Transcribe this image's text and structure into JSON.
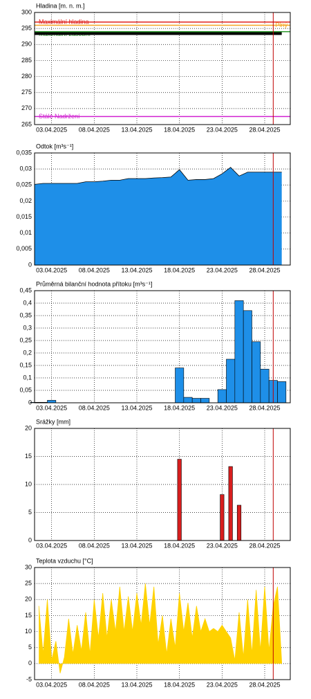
{
  "chart_data": [
    {
      "type": "line",
      "title": "Hladina [m. n. m.]",
      "x": [
        1,
        30
      ],
      "series": [
        {
          "color": "#000000",
          "values": [
            293.4,
            293.4
          ]
        }
      ],
      "reference_lines": [
        {
          "name": "Maximální hladina",
          "value": 297,
          "color": "#e0201c"
        },
        {
          "name": "Plný",
          "value": 296,
          "color": "#f5a623"
        },
        {
          "name": "Maximální zásobní",
          "value": 294,
          "color": "#2e9a2e"
        },
        {
          "name": "Stálé Nadržení",
          "value": 267.5,
          "color": "#d020d0"
        }
      ],
      "xlim": [
        1,
        31
      ],
      "xticks": [
        {
          "value": 3,
          "label": "03.04.2025"
        },
        {
          "value": 8,
          "label": "08.04.2025"
        },
        {
          "value": 13,
          "label": "13.04.2025"
        },
        {
          "value": 18,
          "label": "18.04.2025"
        },
        {
          "value": 23,
          "label": "23.04.2025"
        },
        {
          "value": 28,
          "label": "28.04.2025"
        }
      ],
      "ylim": [
        265,
        300
      ],
      "yticks": [
        265,
        270,
        275,
        280,
        285,
        290,
        295,
        300
      ],
      "marker_line": {
        "x": 29,
        "color": "#c00000"
      },
      "grid": true
    },
    {
      "type": "area",
      "title": "Odtok [m³s⁻¹]",
      "color": "#1e8fe8",
      "x": [
        1,
        2,
        3,
        4,
        5,
        6,
        7,
        8,
        9,
        10,
        11,
        12,
        13,
        14,
        15,
        16,
        17,
        18,
        19,
        20,
        21,
        22,
        23,
        24,
        25,
        26,
        27,
        28,
        29,
        30
      ],
      "values": [
        0.0252,
        0.0255,
        0.0255,
        0.0255,
        0.0255,
        0.0255,
        0.026,
        0.026,
        0.0262,
        0.0265,
        0.0265,
        0.027,
        0.027,
        0.027,
        0.0272,
        0.0273,
        0.0275,
        0.0298,
        0.0265,
        0.0267,
        0.0267,
        0.027,
        0.0285,
        0.0305,
        0.0278,
        0.029,
        0.029,
        0.029,
        0.029,
        0.029
      ],
      "xlim": [
        1,
        31
      ],
      "xticks": [
        {
          "value": 3,
          "label": "03.04.2025"
        },
        {
          "value": 8,
          "label": "08.04.2025"
        },
        {
          "value": 13,
          "label": "13.04.2025"
        },
        {
          "value": 18,
          "label": "18.04.2025"
        },
        {
          "value": 23,
          "label": "23.04.2025"
        },
        {
          "value": 28,
          "label": "28.04.2025"
        }
      ],
      "ylim": [
        0,
        0.035
      ],
      "yticks": [
        0,
        {
          "value": 0.005,
          "label": "0,005"
        },
        {
          "value": 0.01,
          "label": "0,01"
        },
        {
          "value": 0.015,
          "label": "0,015"
        },
        {
          "value": 0.02,
          "label": "0,02"
        },
        {
          "value": 0.025,
          "label": "0,025"
        },
        {
          "value": 0.03,
          "label": "0,03"
        },
        {
          "value": 0.035,
          "label": "0,035"
        }
      ],
      "marker_line": {
        "x": 29,
        "color": "#c00000"
      },
      "grid": true
    },
    {
      "type": "bar",
      "title": "Průměrná bilanční hodnota přítoku   [m³s⁻¹]",
      "color": "#1e8fe8",
      "x": [
        1,
        2,
        3,
        4,
        5,
        6,
        7,
        8,
        9,
        10,
        11,
        12,
        13,
        14,
        15,
        16,
        17,
        18,
        19,
        20,
        21,
        22,
        23,
        24,
        25,
        26,
        27,
        28,
        29,
        30
      ],
      "values": [
        0.002,
        0.002,
        0.01,
        0,
        0,
        0,
        0,
        0,
        0,
        0,
        0,
        0,
        0,
        0,
        0,
        0,
        0,
        0.14,
        0.022,
        0.018,
        0.018,
        0,
        0.053,
        0.175,
        0.41,
        0.37,
        0.245,
        0.135,
        0.09,
        0.085
      ],
      "xlim": [
        1,
        31
      ],
      "xticks": [
        {
          "value": 3,
          "label": "03.04.2025"
        },
        {
          "value": 8,
          "label": "08.04.2025"
        },
        {
          "value": 13,
          "label": "13.04.2025"
        },
        {
          "value": 18,
          "label": "18.04.2025"
        },
        {
          "value": 23,
          "label": "23.04.2025"
        },
        {
          "value": 28,
          "label": "28.04.2025"
        }
      ],
      "ylim": [
        0,
        0.45
      ],
      "yticks": [
        0,
        {
          "value": 0.05,
          "label": "0,05"
        },
        {
          "value": 0.1,
          "label": "0,1"
        },
        {
          "value": 0.15,
          "label": "0,15"
        },
        {
          "value": 0.2,
          "label": "0,2"
        },
        {
          "value": 0.25,
          "label": "0,25"
        },
        {
          "value": 0.3,
          "label": "0,3"
        },
        {
          "value": 0.35,
          "label": "0,35"
        },
        {
          "value": 0.4,
          "label": "0,4"
        },
        {
          "value": 0.45,
          "label": "0,45"
        }
      ],
      "marker_line": {
        "x": 29,
        "color": "#c00000"
      },
      "grid": true
    },
    {
      "type": "bar",
      "title": "Srážky [mm]",
      "color": "#d81e1e",
      "x": [
        18,
        23,
        24,
        25
      ],
      "values": [
        14.5,
        8.2,
        13.2,
        6.3
      ],
      "xlim": [
        1,
        31
      ],
      "xticks": [
        {
          "value": 3,
          "label": "03.04.2025"
        },
        {
          "value": 8,
          "label": "08.04.2025"
        },
        {
          "value": 13,
          "label": "13.04.2025"
        },
        {
          "value": 18,
          "label": "18.04.2025"
        },
        {
          "value": 23,
          "label": "23.04.2025"
        },
        {
          "value": 28,
          "label": "28.04.2025"
        }
      ],
      "ylim": [
        0,
        20
      ],
      "yticks": [
        0,
        5,
        10,
        15,
        20
      ],
      "marker_line": {
        "x": 29,
        "color": "#c00000"
      },
      "grid": true
    },
    {
      "type": "area",
      "title": "Teplota vzduchu [°C]",
      "color": "#ffd200",
      "x": [
        1.5,
        2,
        2.5,
        3,
        3.5,
        4,
        4.5,
        5,
        5.5,
        6,
        6.5,
        7,
        7.5,
        8,
        8.5,
        9,
        9.5,
        10,
        10.5,
        11,
        11.5,
        12,
        12.5,
        13,
        13.5,
        14,
        14.5,
        15,
        15.5,
        16,
        16.5,
        17,
        17.5,
        18,
        18.5,
        19,
        19.5,
        20,
        20.5,
        21,
        21.5,
        22,
        22.5,
        23,
        23.5,
        24,
        24.5,
        25,
        25.5,
        26,
        26.5,
        27,
        27.5,
        28,
        28.5,
        29,
        29.5,
        30
      ],
      "values": [
        18,
        3,
        20,
        1,
        7,
        -3,
        2,
        14,
        3,
        12,
        4,
        16,
        3,
        20,
        8,
        22,
        8,
        20,
        10,
        24,
        10,
        21,
        10,
        22,
        12,
        25,
        12,
        24,
        6,
        15,
        3,
        14,
        5,
        22,
        10,
        19,
        8,
        18,
        10,
        14,
        10,
        11,
        10,
        12,
        10,
        8,
        1,
        16,
        2,
        20,
        3,
        23,
        4,
        24,
        4,
        18,
        24,
        0
      ],
      "xlim": [
        1,
        31
      ],
      "xticks": [
        {
          "value": 3,
          "label": "03.04.2025"
        },
        {
          "value": 8,
          "label": "08.04.2025"
        },
        {
          "value": 13,
          "label": "13.04.2025"
        },
        {
          "value": 18,
          "label": "18.04.2025"
        },
        {
          "value": 23,
          "label": "23.04.2025"
        },
        {
          "value": 28,
          "label": "28.04.2025"
        }
      ],
      "ylim": [
        -5,
        30
      ],
      "yticks": [
        -5,
        0,
        5,
        10,
        15,
        20,
        25,
        30
      ],
      "marker_line": {
        "x": 29,
        "color": "#c00000"
      },
      "grid": true
    }
  ]
}
